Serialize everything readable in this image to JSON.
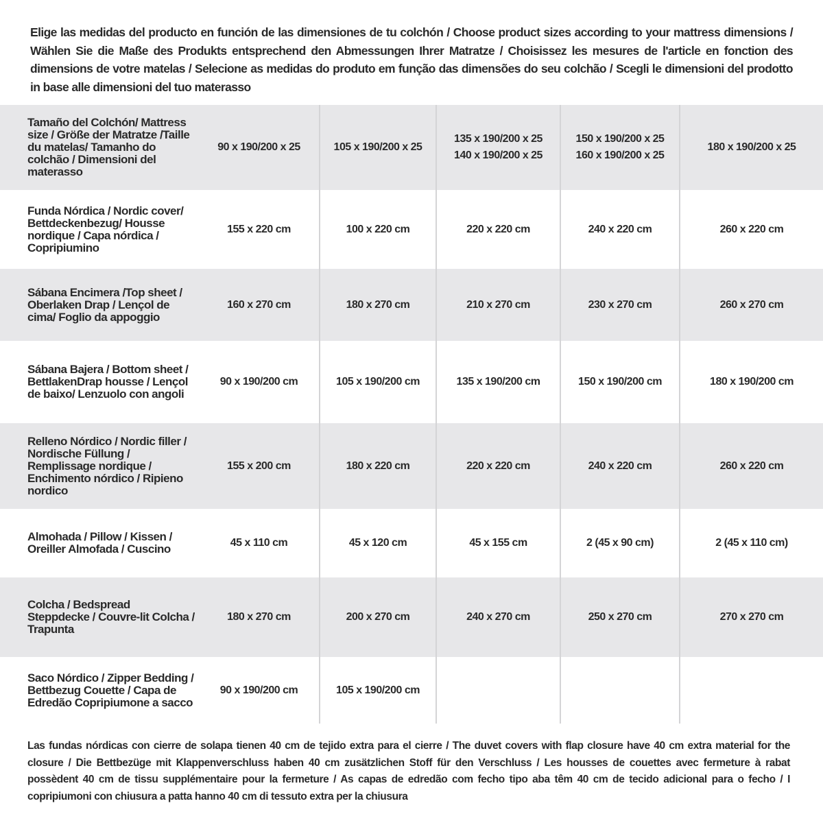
{
  "intro": "Elige las medidas del producto en función de las dimensiones de tu colchón / Choose product sizes according to your mattress dimensions / Wählen Sie die Maße des Produkts entsprechend den Abmessungen Ihrer Matratze / Choisissez les mesures de l'article en fonction des dimensions de votre matelas / Selecione as medidas do produto em função das dimensões do seu colchão / Scegli le dimensioni del prodotto in base alle dimensioni del tuo materasso",
  "rows": [
    {
      "label": "Tamaño del Colchón/ Mattress size / Größe der Matratze /Taille du matelas/ Tamanho do colchão / Dimensioni del materasso",
      "values": [
        "90 x 190/200 x 25",
        "105 x 190/200 x 25",
        "135 x 190/200 x 25\n140 x 190/200 x 25",
        "150 x 190/200 x 25\n160 x 190/200 x 25",
        "180 x 190/200 x 25"
      ]
    },
    {
      "label": "Funda Nórdica /  Nordic cover/ Bettdeckenbezug/ Housse nordique  / Capa nórdica / Copripiumino",
      "values": [
        "155 x 220 cm",
        "100 x 220 cm",
        "220 x 220 cm",
        "240 x 220 cm",
        "260 x 220 cm"
      ]
    },
    {
      "label": "Sábana Encimera /Top sheet / Oberlaken Drap / Lençol de cima/ Foglio da appoggio",
      "values": [
        "160 x 270 cm",
        "180 x 270 cm",
        "210 x 270 cm",
        "230 x 270 cm",
        "260 x 270 cm"
      ]
    },
    {
      "label": "Sábana Bajera / Bottom sheet / BettlakenDrap housse / Lençol de baixo/ Lenzuolo con angoli",
      "values": [
        "90 x 190/200 cm",
        "105 x 190/200 cm",
        "135 x 190/200 cm",
        "150 x 190/200 cm",
        "180 x 190/200 cm"
      ]
    },
    {
      "label": "Relleno Nórdico / Nordic filler / Nordische Füllung / Remplissage nordique / Enchimento nórdico / Ripieno nordico",
      "values": [
        "155 x 200 cm",
        "180 x 220 cm",
        "220 x 220 cm",
        "240 x 220 cm",
        "260 x 220 cm"
      ]
    },
    {
      "label": "Almohada  / Pillow / Kissen / Oreiller Almofada / Cuscino",
      "values": [
        "45 x 110 cm",
        "45 x 120 cm",
        "45 x 155 cm",
        "2 (45 x 90 cm)",
        "2 (45 x 110 cm)"
      ]
    },
    {
      "label": "Colcha / Bedspread Steppdecke / Couvre-lit Colcha / Trapunta",
      "values": [
        "180 x 270 cm",
        "200 x 270 cm",
        "240 x 270 cm",
        "250 x 270 cm",
        "270 x 270 cm"
      ]
    },
    {
      "label": "Saco Nórdico / Zipper Bedding / Bettbezug Couette  / Capa de Edredão Copripiumone a sacco",
      "values": [
        "90 x 190/200 cm",
        "105 x 190/200 cm",
        "",
        "",
        ""
      ]
    }
  ],
  "note": "Las fundas nórdicas con cierre de solapa tienen 40 cm de tejido extra para el cierre  / The duvet covers with flap closure have 40 cm extra material for the closure / Die Bettbezüge mit Klappenverschluss haben 40 cm zusätzlichen Stoff für den Verschluss / Les housses de couettes avec fermeture à rabat possèdent 40 cm de tissu supplémentaire pour la fermeture / As capas de edredão com fecho tipo aba têm 40 cm de tecido adicional para o fecho / I copripiumoni con chiusura a patta hanno 40 cm di tessuto extra per la chiusura"
}
